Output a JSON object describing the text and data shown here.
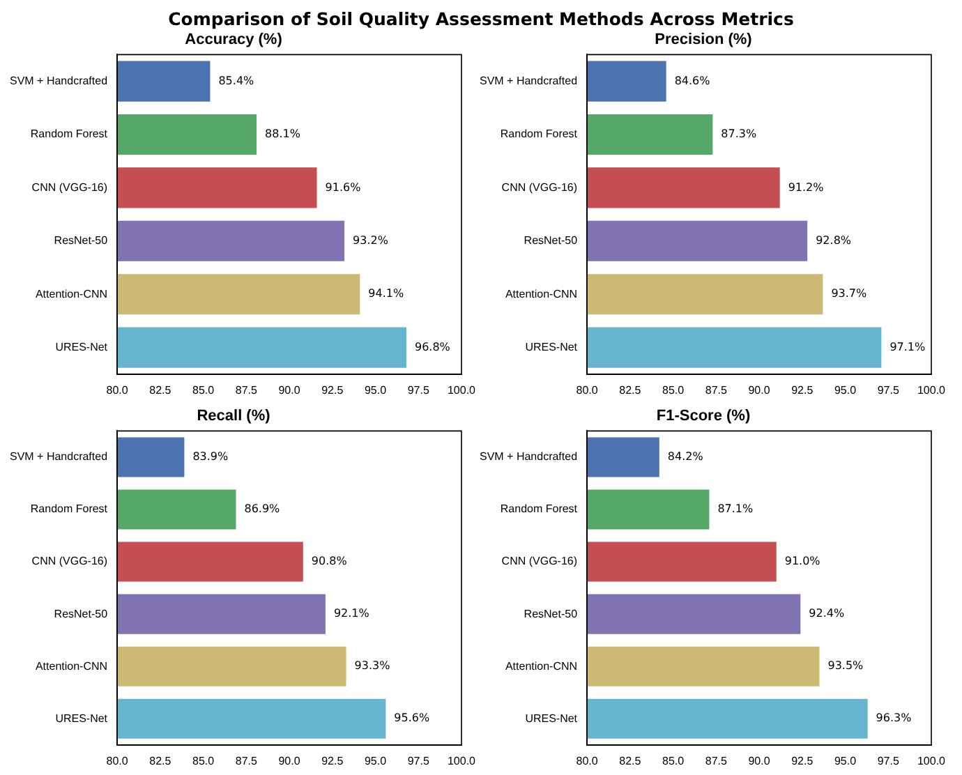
{
  "chart_data": [
    {
      "type": "bar",
      "orientation": "horizontal",
      "title": "Accuracy (%)",
      "annotations": [
        "Comparison of Soil Quality Assessment Methods Across Metrics"
      ],
      "categories": [
        "SVM + Handcrafted",
        "Random Forest",
        "CNN (VGG-16)",
        "ResNet-50",
        "Attention-CNN",
        "URES-Net"
      ],
      "values": [
        85.4,
        88.1,
        91.6,
        93.2,
        94.1,
        96.8
      ],
      "value_labels": [
        "85.4%",
        "88.1%",
        "91.6%",
        "93.2%",
        "94.1%",
        "96.8%"
      ],
      "colors": [
        "#4c72b0",
        "#55a868",
        "#c44e52",
        "#8172b2",
        "#ccb974",
        "#64b5cd"
      ],
      "xlim": [
        80,
        100
      ],
      "xticks": [
        {
          "value": 80,
          "label": "80.0"
        },
        {
          "value": 82.5,
          "label": "82.5"
        },
        {
          "value": 85,
          "label": "85.0"
        },
        {
          "value": 87.5,
          "label": "87.5"
        },
        {
          "value": 90,
          "label": "90.0"
        },
        {
          "value": 92.5,
          "label": "92.5"
        },
        {
          "value": 95,
          "label": "95.0"
        },
        {
          "value": 97.5,
          "label": "97.5"
        },
        {
          "value": 100,
          "label": "100.0"
        }
      ]
    },
    {
      "type": "bar",
      "orientation": "horizontal",
      "title": "Precision (%)",
      "categories": [
        "SVM + Handcrafted",
        "Random Forest",
        "CNN (VGG-16)",
        "ResNet-50",
        "Attention-CNN",
        "URES-Net"
      ],
      "values": [
        84.6,
        87.3,
        91.2,
        92.8,
        93.7,
        97.1
      ],
      "value_labels": [
        "84.6%",
        "87.3%",
        "91.2%",
        "92.8%",
        "93.7%",
        "97.1%"
      ],
      "colors": [
        "#4c72b0",
        "#55a868",
        "#c44e52",
        "#8172b2",
        "#ccb974",
        "#64b5cd"
      ],
      "xlim": [
        80,
        100
      ],
      "xticks": [
        {
          "value": 80,
          "label": "80.0"
        },
        {
          "value": 82.5,
          "label": "82.5"
        },
        {
          "value": 85,
          "label": "85.0"
        },
        {
          "value": 87.5,
          "label": "87.5"
        },
        {
          "value": 90,
          "label": "90.0"
        },
        {
          "value": 92.5,
          "label": "92.5"
        },
        {
          "value": 95,
          "label": "95.0"
        },
        {
          "value": 97.5,
          "label": "97.5"
        },
        {
          "value": 100,
          "label": "100.0"
        }
      ]
    },
    {
      "type": "bar",
      "orientation": "horizontal",
      "title": "Recall (%)",
      "categories": [
        "SVM + Handcrafted",
        "Random Forest",
        "CNN (VGG-16)",
        "ResNet-50",
        "Attention-CNN",
        "URES-Net"
      ],
      "values": [
        83.9,
        86.9,
        90.8,
        92.1,
        93.3,
        95.6
      ],
      "value_labels": [
        "83.9%",
        "86.9%",
        "90.8%",
        "92.1%",
        "93.3%",
        "95.6%"
      ],
      "colors": [
        "#4c72b0",
        "#55a868",
        "#c44e52",
        "#8172b2",
        "#ccb974",
        "#64b5cd"
      ],
      "xlim": [
        80,
        100
      ],
      "xticks": [
        {
          "value": 80,
          "label": "80.0"
        },
        {
          "value": 82.5,
          "label": "82.5"
        },
        {
          "value": 85,
          "label": "85.0"
        },
        {
          "value": 87.5,
          "label": "87.5"
        },
        {
          "value": 90,
          "label": "90.0"
        },
        {
          "value": 92.5,
          "label": "92.5"
        },
        {
          "value": 95,
          "label": "95.0"
        },
        {
          "value": 97.5,
          "label": "97.5"
        },
        {
          "value": 100,
          "label": "100.0"
        }
      ]
    },
    {
      "type": "bar",
      "orientation": "horizontal",
      "title": "F1-Score (%)",
      "categories": [
        "SVM + Handcrafted",
        "Random Forest",
        "CNN (VGG-16)",
        "ResNet-50",
        "Attention-CNN",
        "URES-Net"
      ],
      "values": [
        84.2,
        87.1,
        91.0,
        92.4,
        93.5,
        96.3
      ],
      "value_labels": [
        "84.2%",
        "87.1%",
        "91.0%",
        "92.4%",
        "93.5%",
        "96.3%"
      ],
      "colors": [
        "#4c72b0",
        "#55a868",
        "#c44e52",
        "#8172b2",
        "#ccb974",
        "#64b5cd"
      ],
      "xlim": [
        80,
        100
      ],
      "xticks": [
        {
          "value": 80,
          "label": "80.0"
        },
        {
          "value": 82.5,
          "label": "82.5"
        },
        {
          "value": 85,
          "label": "85.0"
        },
        {
          "value": 87.5,
          "label": "87.5"
        },
        {
          "value": 90,
          "label": "90.0"
        },
        {
          "value": 92.5,
          "label": "92.5"
        },
        {
          "value": 95,
          "label": "95.0"
        },
        {
          "value": 97.5,
          "label": "97.5"
        },
        {
          "value": 100,
          "label": "100.0"
        }
      ]
    }
  ]
}
